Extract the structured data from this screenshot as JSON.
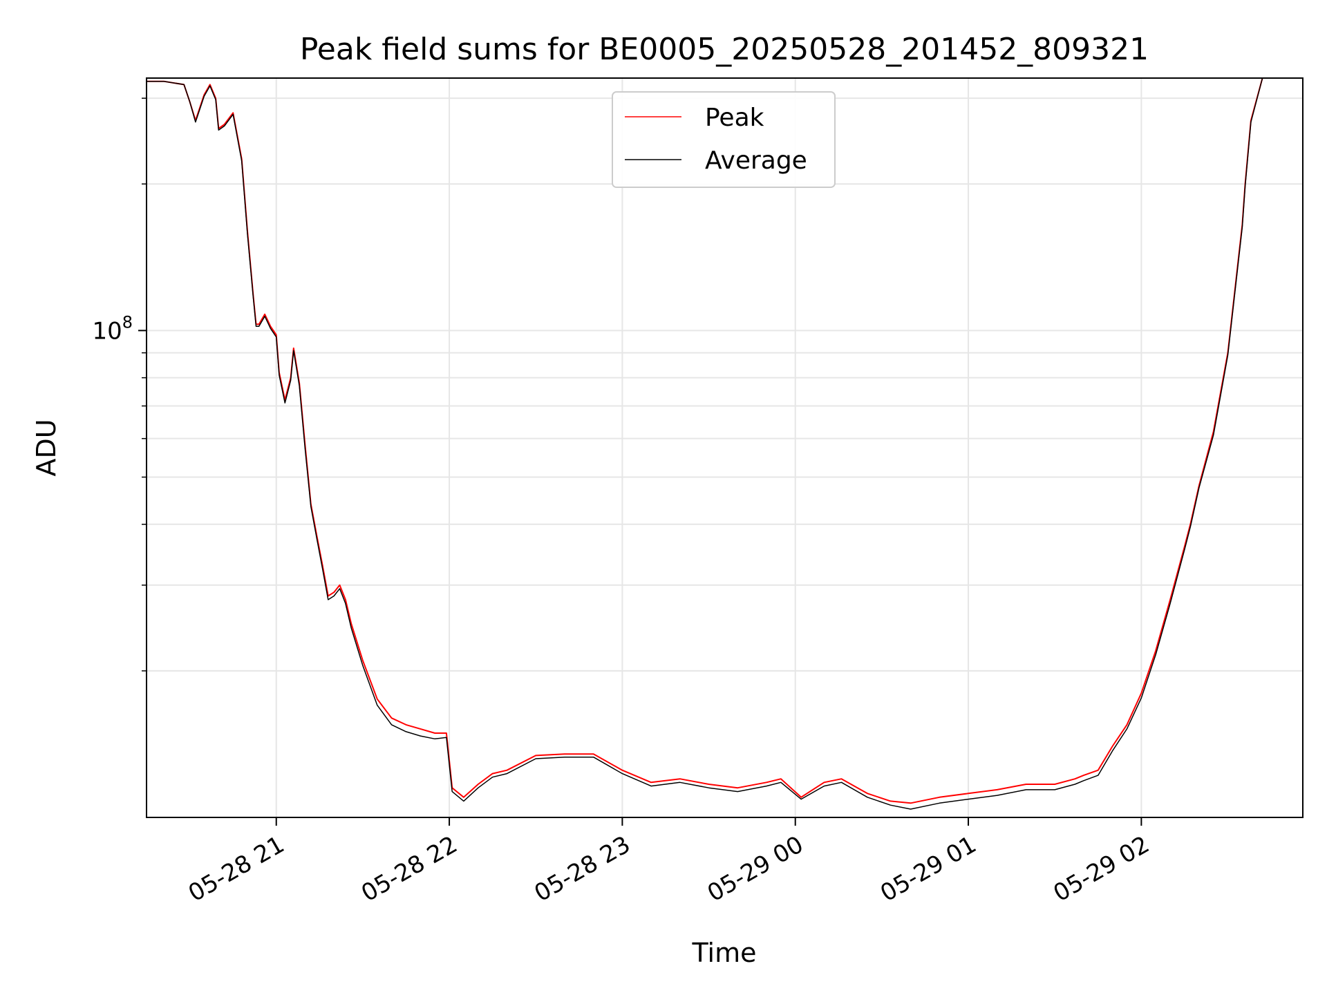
{
  "chart_data": {
    "type": "line",
    "title": "Peak field sums for BE0005_20250528_201452_809321",
    "xlabel": "Time",
    "ylabel": "ADU",
    "yscale": "log",
    "ylim": [
      10000000,
      330000000
    ],
    "xlim": [
      "2025-05-28 20:15",
      "2025-05-29 02:56"
    ],
    "x_ticks": [
      "05-28 21",
      "05-28 22",
      "05-28 23",
      "05-29 00",
      "05-29 01",
      "05-29 02"
    ],
    "x_tick_times": [
      "2025-05-28 21:00",
      "2025-05-28 22:00",
      "2025-05-28 23:00",
      "2025-05-29 00:00",
      "2025-05-29 01:00",
      "2025-05-29 02:00"
    ],
    "y_ticks": [
      {
        "label": "10",
        "exp": "8",
        "value": 100000000
      }
    ],
    "grid": true,
    "legend_position": "upper-center",
    "series": [
      {
        "name": "Peak",
        "color": "#ff0000",
        "x": [
          "2025-05-28 20:15",
          "2025-05-28 20:21",
          "2025-05-28 20:28",
          "2025-05-28 20:30",
          "2025-05-28 20:32",
          "2025-05-28 20:35",
          "2025-05-28 20:37",
          "2025-05-28 20:39",
          "2025-05-28 20:40",
          "2025-05-28 20:42",
          "2025-05-28 20:45",
          "2025-05-28 20:48",
          "2025-05-28 20:50",
          "2025-05-28 20:52",
          "2025-05-28 20:53",
          "2025-05-28 20:54",
          "2025-05-28 20:56",
          "2025-05-28 20:58",
          "2025-05-28 21:00",
          "2025-05-28 21:01",
          "2025-05-28 21:03",
          "2025-05-28 21:05",
          "2025-05-28 21:06",
          "2025-05-28 21:08",
          "2025-05-28 21:10",
          "2025-05-28 21:12",
          "2025-05-28 21:14",
          "2025-05-28 21:16",
          "2025-05-28 21:18",
          "2025-05-28 21:20",
          "2025-05-28 21:22",
          "2025-05-28 21:24",
          "2025-05-28 21:26",
          "2025-05-28 21:30",
          "2025-05-28 21:35",
          "2025-05-28 21:40",
          "2025-05-28 21:45",
          "2025-05-28 21:50",
          "2025-05-28 21:55",
          "2025-05-28 21:59",
          "2025-05-28 22:01",
          "2025-05-28 22:05",
          "2025-05-28 22:10",
          "2025-05-28 22:15",
          "2025-05-28 22:20",
          "2025-05-28 22:30",
          "2025-05-28 22:40",
          "2025-05-28 22:50",
          "2025-05-28 23:00",
          "2025-05-28 23:10",
          "2025-05-28 23:20",
          "2025-05-28 23:30",
          "2025-05-28 23:40",
          "2025-05-28 23:50",
          "2025-05-28 23:55",
          "2025-05-29 00:02",
          "2025-05-29 00:10",
          "2025-05-29 00:16",
          "2025-05-29 00:25",
          "2025-05-29 00:33",
          "2025-05-29 00:40",
          "2025-05-29 00:50",
          "2025-05-29 01:00",
          "2025-05-29 01:10",
          "2025-05-29 01:20",
          "2025-05-29 01:30",
          "2025-05-29 01:37",
          "2025-05-29 01:40",
          "2025-05-29 01:45",
          "2025-05-29 01:50",
          "2025-05-29 01:55",
          "2025-05-29 02:00",
          "2025-05-29 02:05",
          "2025-05-29 02:10",
          "2025-05-29 02:15",
          "2025-05-29 02:17",
          "2025-05-29 02:20",
          "2025-05-29 02:25",
          "2025-05-29 02:30",
          "2025-05-29 02:35",
          "2025-05-29 02:36",
          "2025-05-29 02:38",
          "2025-05-29 02:42",
          "2025-05-29 02:56"
        ],
        "values": [
          325000000,
          325000000,
          320000000,
          295000000,
          270000000,
          305000000,
          320000000,
          300000000,
          260000000,
          265000000,
          280000000,
          225000000,
          160000000,
          118000000,
          103000000,
          103000000,
          108000000,
          102000000,
          98000000,
          82000000,
          72000000,
          80000000,
          92000000,
          78000000,
          58000000,
          44000000,
          38000000,
          33000000,
          28500000,
          29000000,
          30000000,
          28000000,
          25000000,
          21000000,
          17500000,
          16000000,
          15500000,
          15200000,
          14900000,
          14900000,
          11500000,
          11000000,
          11700000,
          12300000,
          12500000,
          13400000,
          13500000,
          13500000,
          12500000,
          11800000,
          12000000,
          11700000,
          11500000,
          11800000,
          12000000,
          11000000,
          11800000,
          12000000,
          11200000,
          10800000,
          10700000,
          11000000,
          11200000,
          11400000,
          11700000,
          11700000,
          12000000,
          12200000,
          12500000,
          14000000,
          15500000,
          18000000,
          22000000,
          28000000,
          36000000,
          40000000,
          48000000,
          62000000,
          90000000,
          165000000,
          200000000,
          270000000,
          330000000,
          330000000
        ]
      },
      {
        "name": "Average",
        "color": "#000000",
        "x": [
          "2025-05-28 20:15",
          "2025-05-28 20:21",
          "2025-05-28 20:28",
          "2025-05-28 20:30",
          "2025-05-28 20:32",
          "2025-05-28 20:35",
          "2025-05-28 20:37",
          "2025-05-28 20:39",
          "2025-05-28 20:40",
          "2025-05-28 20:42",
          "2025-05-28 20:45",
          "2025-05-28 20:48",
          "2025-05-28 20:50",
          "2025-05-28 20:52",
          "2025-05-28 20:53",
          "2025-05-28 20:54",
          "2025-05-28 20:56",
          "2025-05-28 20:58",
          "2025-05-28 21:00",
          "2025-05-28 21:01",
          "2025-05-28 21:03",
          "2025-05-28 21:05",
          "2025-05-28 21:06",
          "2025-05-28 21:08",
          "2025-05-28 21:10",
          "2025-05-28 21:12",
          "2025-05-28 21:14",
          "2025-05-28 21:16",
          "2025-05-28 21:18",
          "2025-05-28 21:20",
          "2025-05-28 21:22",
          "2025-05-28 21:24",
          "2025-05-28 21:26",
          "2025-05-28 21:30",
          "2025-05-28 21:35",
          "2025-05-28 21:40",
          "2025-05-28 21:45",
          "2025-05-28 21:50",
          "2025-05-28 21:55",
          "2025-05-28 21:59",
          "2025-05-28 22:01",
          "2025-05-28 22:05",
          "2025-05-28 22:10",
          "2025-05-28 22:15",
          "2025-05-28 22:20",
          "2025-05-28 22:30",
          "2025-05-28 22:40",
          "2025-05-28 22:50",
          "2025-05-28 23:00",
          "2025-05-28 23:10",
          "2025-05-28 23:20",
          "2025-05-28 23:30",
          "2025-05-28 23:40",
          "2025-05-28 23:50",
          "2025-05-28 23:55",
          "2025-05-29 00:02",
          "2025-05-29 00:10",
          "2025-05-29 00:16",
          "2025-05-29 00:25",
          "2025-05-29 00:33",
          "2025-05-29 00:40",
          "2025-05-29 00:50",
          "2025-05-29 01:00",
          "2025-05-29 01:10",
          "2025-05-29 01:20",
          "2025-05-29 01:30",
          "2025-05-29 01:37",
          "2025-05-29 01:40",
          "2025-05-29 01:45",
          "2025-05-29 01:50",
          "2025-05-29 01:55",
          "2025-05-29 02:00",
          "2025-05-29 02:05",
          "2025-05-29 02:10",
          "2025-05-29 02:15",
          "2025-05-29 02:17",
          "2025-05-29 02:20",
          "2025-05-29 02:25",
          "2025-05-29 02:30",
          "2025-05-29 02:35",
          "2025-05-29 02:36",
          "2025-05-29 02:38",
          "2025-05-29 02:42",
          "2025-05-29 02:56"
        ],
        "values": [
          325000000,
          325000000,
          320000000,
          295000000,
          268000000,
          303000000,
          318000000,
          298000000,
          258000000,
          263000000,
          278000000,
          223000000,
          158000000,
          117000000,
          102000000,
          102000000,
          107000000,
          101000000,
          97000000,
          81000000,
          71000000,
          79000000,
          91000000,
          77000000,
          57000000,
          43500000,
          37500000,
          32500000,
          28000000,
          28500000,
          29500000,
          27500000,
          24500000,
          20500000,
          17000000,
          15500000,
          15000000,
          14700000,
          14500000,
          14600000,
          11300000,
          10800000,
          11500000,
          12100000,
          12300000,
          13200000,
          13300000,
          13300000,
          12300000,
          11600000,
          11800000,
          11500000,
          11300000,
          11600000,
          11800000,
          10900000,
          11600000,
          11800000,
          11000000,
          10600000,
          10400000,
          10700000,
          10900000,
          11100000,
          11400000,
          11400000,
          11700000,
          11900000,
          12200000,
          13700000,
          15200000,
          17600000,
          21600000,
          27500000,
          35500000,
          39500000,
          47500000,
          61000000,
          89000000,
          163000000,
          198000000,
          268000000,
          330000000,
          330000000
        ]
      }
    ]
  }
}
